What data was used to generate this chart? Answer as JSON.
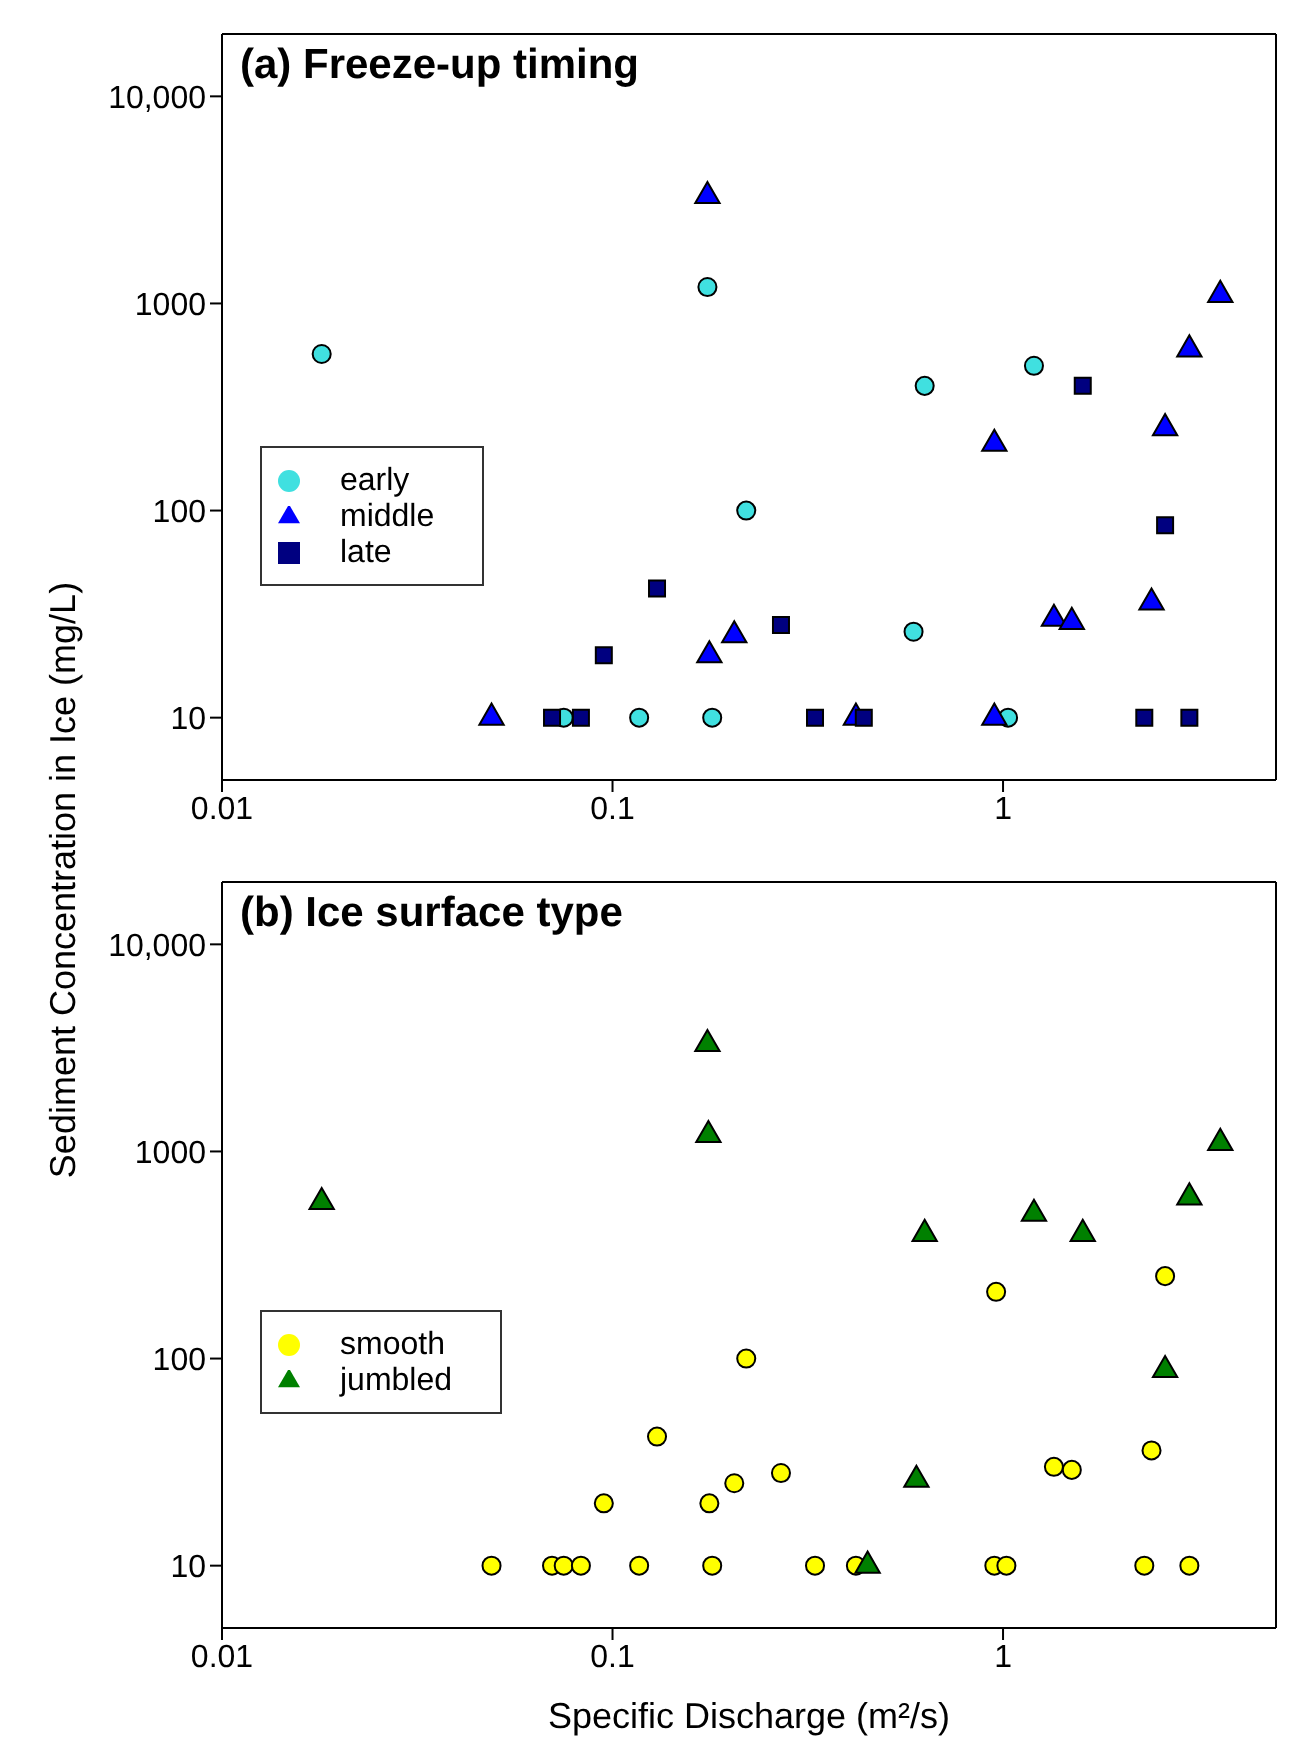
{
  "chart_data": [
    {
      "type": "scatter",
      "title": "(a) Freeze-up timing",
      "ylabel": "Sediment Concentration in Ice (mg/L)",
      "log": "xy",
      "xlim": [
        0.01,
        5
      ],
      "xticks": [
        0.01,
        0.1,
        1
      ],
      "ylim": [
        5,
        20000
      ],
      "yticks": [
        10,
        100,
        1000,
        {
          "value": 10000,
          "label": "10,000"
        }
      ],
      "grid": false,
      "legend": "left",
      "series": [
        {
          "name": "early",
          "color": "#40e0e0",
          "marker": "circle",
          "x": [
            0.018,
            0.075,
            0.117,
            0.175,
            0.18,
            0.22,
            0.59,
            0.63,
            1.03,
            1.2
          ],
          "values": [
            570,
            10,
            10,
            1200,
            10,
            100,
            26,
            400,
            10,
            500
          ]
        },
        {
          "name": "middle",
          "color": "#0000ff",
          "marker": "triangle",
          "x": [
            0.049,
            0.175,
            0.177,
            0.205,
            0.42,
            0.95,
            0.95,
            1.35,
            1.5,
            2.4,
            2.6,
            3.0,
            3.6
          ],
          "values": [
            10,
            3300,
            20,
            25,
            10,
            210,
            10,
            30,
            29,
            36,
            250,
            600,
            1100
          ]
        },
        {
          "name": "late",
          "color": "#000080",
          "marker": "square",
          "x": [
            0.07,
            0.083,
            0.095,
            0.13,
            0.27,
            0.33,
            0.44,
            1.6,
            2.3,
            2.6,
            3.0
          ],
          "values": [
            10,
            10,
            20,
            42,
            28,
            10,
            10,
            400,
            10,
            85,
            10
          ]
        }
      ]
    },
    {
      "type": "scatter",
      "title": "(b) Ice surface type",
      "xlabel": "Specific Discharge (m²/s)",
      "log": "xy",
      "xlim": [
        0.01,
        5
      ],
      "xticks": [
        0.01,
        0.1,
        1
      ],
      "ylim": [
        5,
        20000
      ],
      "yticks": [
        10,
        100,
        1000,
        {
          "value": 10000,
          "label": "10,000"
        }
      ],
      "grid": false,
      "legend": "left",
      "series": [
        {
          "name": "smooth",
          "color": "#ffff00",
          "marker": "circle",
          "x": [
            0.049,
            0.07,
            0.075,
            0.083,
            0.095,
            0.117,
            0.13,
            0.177,
            0.18,
            0.205,
            0.22,
            0.27,
            0.33,
            0.42,
            0.96,
            0.95,
            1.02,
            1.35,
            1.5,
            2.3,
            2.4,
            2.6,
            3.0
          ],
          "values": [
            10,
            10,
            10,
            10,
            20,
            10,
            42,
            20,
            10,
            25,
            100,
            28,
            10,
            10,
            210,
            10,
            10,
            30,
            29,
            10,
            36,
            250,
            10
          ]
        },
        {
          "name": "jumbled",
          "color": "#008000",
          "marker": "triangle",
          "x": [
            0.018,
            0.175,
            0.176,
            0.45,
            0.6,
            0.63,
            1.2,
            1.6,
            2.6,
            3.0,
            3.6
          ],
          "values": [
            570,
            3300,
            1200,
            10,
            26,
            400,
            500,
            400,
            88,
            600,
            1100
          ]
        }
      ]
    }
  ]
}
